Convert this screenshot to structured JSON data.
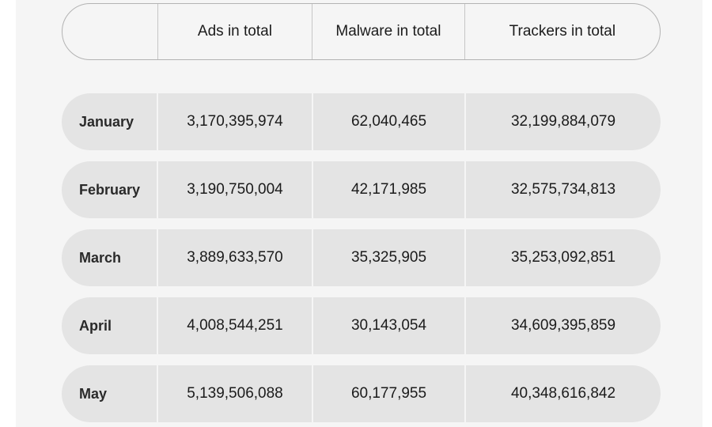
{
  "table": {
    "headers": [
      "",
      "Ads in total",
      "Malware in total",
      "Trackers in total"
    ],
    "rows": [
      {
        "month": "January",
        "ads": "3,170,395,974",
        "malware": "62,040,465",
        "trackers": "32,199,884,079"
      },
      {
        "month": "February",
        "ads": "3,190,750,004",
        "malware": "42,171,985",
        "trackers": "32,575,734,813"
      },
      {
        "month": "March",
        "ads": "3,889,633,570",
        "malware": "35,325,905",
        "trackers": "35,253,092,851"
      },
      {
        "month": "April",
        "ads": "4,008,544,251",
        "malware": "30,143,054",
        "trackers": "34,609,395,859"
      },
      {
        "month": "May",
        "ads": "5,139,506,088",
        "malware": "60,177,955",
        "trackers": "40,348,616,842"
      }
    ]
  }
}
